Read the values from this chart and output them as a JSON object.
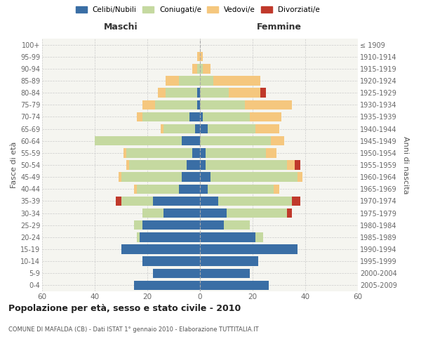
{
  "age_groups": [
    "0-4",
    "5-9",
    "10-14",
    "15-19",
    "20-24",
    "25-29",
    "30-34",
    "35-39",
    "40-44",
    "45-49",
    "50-54",
    "55-59",
    "60-64",
    "65-69",
    "70-74",
    "75-79",
    "80-84",
    "85-89",
    "90-94",
    "95-99",
    "100+"
  ],
  "birth_years": [
    "2005-2009",
    "2000-2004",
    "1995-1999",
    "1990-1994",
    "1985-1989",
    "1980-1984",
    "1975-1979",
    "1970-1974",
    "1965-1969",
    "1960-1964",
    "1955-1959",
    "1950-1954",
    "1945-1949",
    "1940-1944",
    "1935-1939",
    "1930-1934",
    "1925-1929",
    "1920-1924",
    "1915-1919",
    "1910-1914",
    "≤ 1909"
  ],
  "maschi": {
    "celibi": [
      25,
      18,
      22,
      30,
      23,
      22,
      14,
      18,
      8,
      7,
      5,
      3,
      7,
      2,
      4,
      1,
      1,
      0,
      0,
      0,
      0
    ],
    "coniugati": [
      0,
      0,
      0,
      0,
      1,
      3,
      8,
      12,
      16,
      23,
      22,
      25,
      33,
      12,
      18,
      16,
      12,
      8,
      1,
      0,
      0
    ],
    "vedovi": [
      0,
      0,
      0,
      0,
      0,
      0,
      0,
      0,
      1,
      1,
      1,
      1,
      0,
      1,
      2,
      5,
      3,
      5,
      2,
      1,
      0
    ],
    "divorziati": [
      0,
      0,
      0,
      0,
      0,
      0,
      0,
      2,
      0,
      0,
      0,
      0,
      0,
      0,
      0,
      0,
      0,
      0,
      0,
      0,
      0
    ]
  },
  "femmine": {
    "nubili": [
      26,
      19,
      22,
      37,
      21,
      9,
      10,
      7,
      3,
      4,
      2,
      2,
      0,
      3,
      1,
      0,
      0,
      0,
      0,
      0,
      0
    ],
    "coniugate": [
      0,
      0,
      0,
      0,
      3,
      10,
      23,
      28,
      25,
      33,
      31,
      23,
      27,
      18,
      18,
      17,
      11,
      5,
      1,
      0,
      0
    ],
    "vedove": [
      0,
      0,
      0,
      0,
      0,
      0,
      0,
      0,
      2,
      2,
      3,
      4,
      5,
      9,
      12,
      18,
      12,
      18,
      3,
      1,
      0
    ],
    "divorziate": [
      0,
      0,
      0,
      0,
      0,
      0,
      2,
      3,
      0,
      0,
      2,
      0,
      0,
      0,
      0,
      0,
      2,
      0,
      0,
      0,
      0
    ]
  },
  "colors": {
    "celibi": "#3a6ea5",
    "coniugati": "#c5d9a0",
    "vedovi": "#f5c77e",
    "divorziati": "#c0392b"
  },
  "xlim": 60,
  "title": "Popolazione per età, sesso e stato civile - 2010",
  "subtitle": "COMUNE DI MAFALDA (CB) - Dati ISTAT 1° gennaio 2010 - Elaborazione TUTTITALIA.IT",
  "xlabel_left": "Maschi",
  "xlabel_right": "Femmine",
  "ylabel_left": "Fasce di età",
  "ylabel_right": "Anni di nascita",
  "legend_labels": [
    "Celibi/Nubili",
    "Coniugati/e",
    "Vedovi/e",
    "Divorziati/e"
  ],
  "background_color": "#ffffff",
  "plot_bg": "#f5f5f0"
}
